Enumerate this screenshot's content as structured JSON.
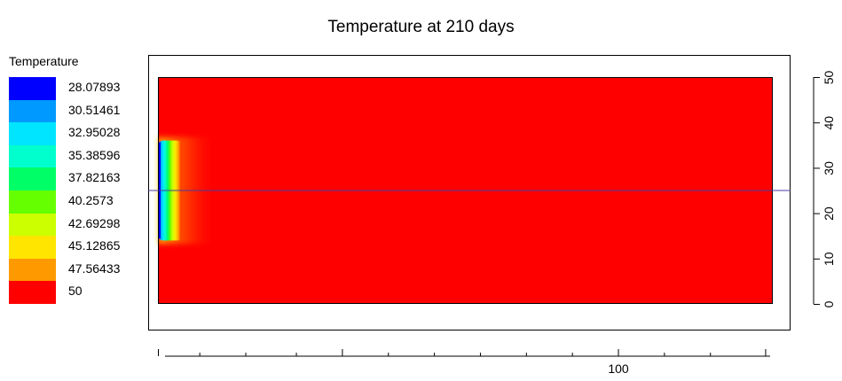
{
  "chart_data": {
    "type": "heatmap",
    "title": "Temperature at 210 days",
    "legend_title": "Temperature",
    "legend_placement": "left",
    "legend": [
      {
        "label": "28.07893",
        "color": "#0000ff"
      },
      {
        "label": "30.51461",
        "color": "#0099ff"
      },
      {
        "label": "32.95028",
        "color": "#00e5ff"
      },
      {
        "label": "35.38596",
        "color": "#00ffcc"
      },
      {
        "label": "37.82163",
        "color": "#00ff66"
      },
      {
        "label": "40.2573",
        "color": "#66ff00"
      },
      {
        "label": "42.69298",
        "color": "#ccff00"
      },
      {
        "label": "45.12865",
        "color": "#ffe500"
      },
      {
        "label": "47.56433",
        "color": "#ff9900"
      },
      {
        "label": "50",
        "color": "#ff0000"
      }
    ],
    "x_axis": {
      "range": [
        0,
        135
      ],
      "tick_values": [
        0,
        40,
        100,
        132
      ],
      "tick_labels": [
        "",
        "",
        "100",
        ""
      ],
      "minor_tick_values": [
        9,
        19,
        30,
        50,
        60,
        70,
        80,
        90,
        110,
        120
      ]
    },
    "y_axis": {
      "position": "right",
      "range": [
        0,
        50
      ],
      "tick_values": [
        0,
        10,
        20,
        30,
        40,
        50
      ],
      "tick_labels": [
        "0",
        "10",
        "20",
        "30",
        "40",
        "50"
      ]
    },
    "field": {
      "background_value": 50,
      "cold_zone": {
        "x_range": [
          0,
          4.3
        ],
        "y_range": [
          14,
          36
        ],
        "min_value": 28.07893
      },
      "profile_line_y": 25
    }
  }
}
